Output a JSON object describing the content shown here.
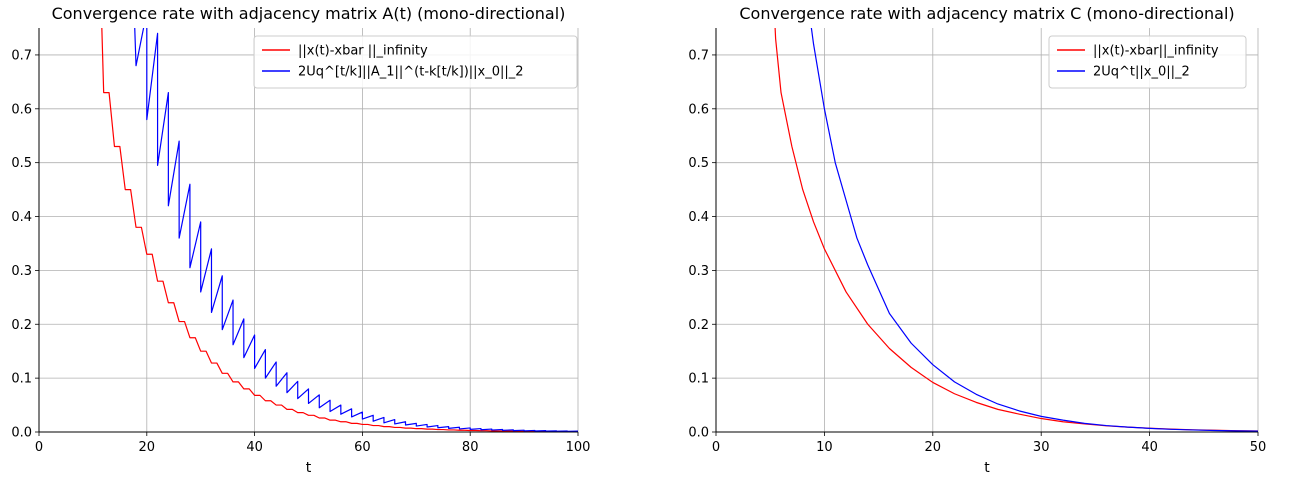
{
  "chart_data": [
    {
      "type": "line",
      "title": "Convergence rate with adjacency matrix A(t) (mono-directional)",
      "xlabel": "t",
      "ylabel": "",
      "xlim": [
        0,
        100
      ],
      "ylim": [
        0,
        0.75
      ],
      "xticks": [
        0,
        20,
        40,
        60,
        80,
        100
      ],
      "xtick_labels": [
        "0",
        "20",
        "40",
        "60",
        "80",
        "100"
      ],
      "yticks": [
        0.0,
        0.1,
        0.2,
        0.3,
        0.4,
        0.5,
        0.6,
        0.7
      ],
      "ytick_labels": [
        "0.0",
        "0.1",
        "0.2",
        "0.3",
        "0.4",
        "0.5",
        "0.6",
        "0.7"
      ],
      "grid": true,
      "legend_position": "top-right",
      "series": [
        {
          "name": "||x(t)-xbar ||_infinity",
          "color": "#ff0000",
          "style": "staircase",
          "step_every": 2,
          "x": [
            12,
            14,
            16,
            18,
            20,
            22,
            24,
            26,
            28,
            30,
            32,
            34,
            36,
            38,
            40,
            42,
            44,
            46,
            48,
            50,
            52,
            54,
            56,
            58,
            60,
            62,
            64,
            66,
            68,
            70,
            72,
            74,
            76,
            78,
            80,
            82,
            84,
            86,
            88,
            90,
            92,
            94,
            96,
            98,
            100
          ],
          "y": [
            0.63,
            0.53,
            0.45,
            0.38,
            0.33,
            0.28,
            0.24,
            0.205,
            0.175,
            0.15,
            0.128,
            0.109,
            0.093,
            0.08,
            0.068,
            0.058,
            0.05,
            0.042,
            0.036,
            0.031,
            0.026,
            0.022,
            0.019,
            0.016,
            0.014,
            0.012,
            0.01,
            0.0085,
            0.0072,
            0.0062,
            0.0053,
            0.0045,
            0.0038,
            0.0033,
            0.0028,
            0.0024,
            0.002,
            0.0017,
            0.0015,
            0.0013,
            0.0011,
            0.0009,
            0.0008,
            0.0007,
            0.0006
          ]
        },
        {
          "name": "2Uq^[t/k]||A_1||^(t-k[t/k])||x_0||_2",
          "color": "#0000ff",
          "style": "sawtooth",
          "peak_x": [
            20,
            22,
            24,
            26,
            28,
            30,
            32,
            34,
            36,
            38,
            40,
            42,
            44,
            46,
            48,
            50,
            52,
            54,
            56,
            58,
            60,
            62,
            64,
            66,
            68,
            70,
            72,
            74,
            76,
            78,
            80,
            82,
            84,
            86,
            88,
            90,
            92,
            94,
            96,
            98,
            100
          ],
          "peak_y": [
            0.78,
            0.74,
            0.63,
            0.54,
            0.46,
            0.39,
            0.34,
            0.29,
            0.245,
            0.21,
            0.18,
            0.153,
            0.13,
            0.11,
            0.094,
            0.08,
            0.069,
            0.059,
            0.05,
            0.043,
            0.037,
            0.031,
            0.027,
            0.023,
            0.019,
            0.016,
            0.014,
            0.012,
            0.01,
            0.0088,
            0.0075,
            0.0064,
            0.0055,
            0.0047,
            0.004,
            0.0034,
            0.0029,
            0.0025,
            0.0021,
            0.0018,
            0.0016
          ],
          "trough_x": [
            18,
            20,
            22,
            24,
            26,
            28,
            30,
            32,
            34,
            36,
            38,
            40,
            42,
            44,
            46,
            48,
            50,
            52,
            54,
            56,
            58,
            60,
            62,
            64,
            66,
            68,
            70,
            72,
            74,
            76,
            78,
            80,
            82,
            84,
            86,
            88,
            90,
            92,
            94,
            96,
            98
          ],
          "trough_y": [
            0.68,
            0.58,
            0.495,
            0.42,
            0.36,
            0.305,
            0.26,
            0.222,
            0.19,
            0.162,
            0.138,
            0.118,
            0.1,
            0.085,
            0.073,
            0.062,
            0.053,
            0.045,
            0.038,
            0.033,
            0.028,
            0.024,
            0.02,
            0.017,
            0.015,
            0.013,
            0.011,
            0.0093,
            0.0079,
            0.0067,
            0.0057,
            0.0049,
            0.0042,
            0.0036,
            0.003,
            0.0026,
            0.0022,
            0.0019,
            0.0016,
            0.0014,
            0.0012
          ]
        }
      ]
    },
    {
      "type": "line",
      "title": "Convergence rate with adjacency matrix C (mono-directional)",
      "xlabel": "t",
      "ylabel": "",
      "xlim": [
        0,
        50
      ],
      "ylim": [
        0,
        0.75
      ],
      "xticks": [
        0,
        10,
        20,
        30,
        40,
        50
      ],
      "xtick_labels": [
        "0",
        "10",
        "20",
        "30",
        "40",
        "50"
      ],
      "yticks": [
        0.0,
        0.1,
        0.2,
        0.3,
        0.4,
        0.5,
        0.6,
        0.7
      ],
      "ytick_labels": [
        "0.0",
        "0.1",
        "0.2",
        "0.3",
        "0.4",
        "0.5",
        "0.6",
        "0.7"
      ],
      "grid": true,
      "legend_position": "top-right",
      "series": [
        {
          "name": "||x(t)-xbar||_infinity",
          "color": "#ff0000",
          "style": "smooth",
          "x": [
            5.5,
            6,
            7,
            8,
            9,
            10,
            12,
            14,
            16,
            18,
            20,
            22,
            24,
            26,
            28,
            30,
            32,
            34,
            36,
            38,
            40,
            42,
            44,
            46,
            48,
            50
          ],
          "y": [
            0.73,
            0.63,
            0.53,
            0.45,
            0.39,
            0.34,
            0.26,
            0.2,
            0.155,
            0.12,
            0.092,
            0.071,
            0.055,
            0.042,
            0.033,
            0.025,
            0.019,
            0.015,
            0.0115,
            0.009,
            0.007,
            0.0053,
            0.0041,
            0.0032,
            0.0024,
            0.0019
          ]
        },
        {
          "name": "2Uq^t||x_0||_2",
          "color": "#0000ff",
          "style": "smooth",
          "x": [
            8.8,
            9,
            10,
            11,
            12,
            13,
            14,
            16,
            18,
            20,
            22,
            24,
            26,
            28,
            30,
            32,
            34,
            36,
            38,
            40,
            42,
            44,
            46,
            48,
            50
          ],
          "y": [
            0.75,
            0.72,
            0.6,
            0.5,
            0.43,
            0.36,
            0.31,
            0.22,
            0.165,
            0.125,
            0.093,
            0.07,
            0.052,
            0.039,
            0.029,
            0.022,
            0.016,
            0.012,
            0.009,
            0.0068,
            0.005,
            0.0038,
            0.0028,
            0.0021,
            0.0016
          ]
        }
      ]
    }
  ]
}
